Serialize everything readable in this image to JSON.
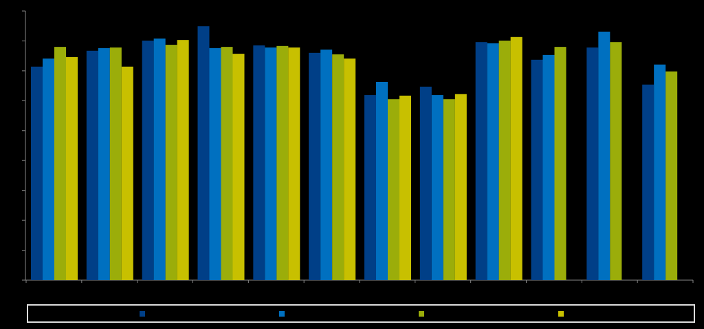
{
  "chart_data": {
    "type": "bar",
    "categories": [
      null,
      null,
      null,
      null,
      null,
      null,
      null,
      null,
      null,
      null,
      null,
      null
    ],
    "series": [
      {
        "color": "#003f87",
        "values": [
          71.4,
          76.7,
          80.1,
          84.9,
          78.5,
          76.0,
          61.9,
          64.7,
          79.6,
          73.7,
          77.8,
          65.4
        ]
      },
      {
        "color": "#0070c0",
        "values": [
          74.1,
          77.6,
          80.8,
          77.6,
          77.8,
          77.1,
          66.3,
          61.9,
          79.2,
          75.3,
          83.1,
          72.1
        ]
      },
      {
        "color": "#9bad0a",
        "values": [
          78.0,
          77.8,
          78.7,
          78.0,
          78.3,
          75.5,
          60.5,
          60.5,
          80.1,
          78.0,
          79.6,
          69.8
        ]
      },
      {
        "color": "#c8c000",
        "values": [
          74.6,
          71.4,
          80.3,
          75.7,
          77.8,
          74.1,
          61.7,
          62.2,
          81.3,
          null,
          null,
          null
        ]
      }
    ],
    "ylim": [
      0,
      90
    ],
    "yticks": [
      0,
      10,
      20,
      30,
      40,
      50,
      60,
      70,
      80,
      90
    ],
    "legend": "bottom"
  }
}
